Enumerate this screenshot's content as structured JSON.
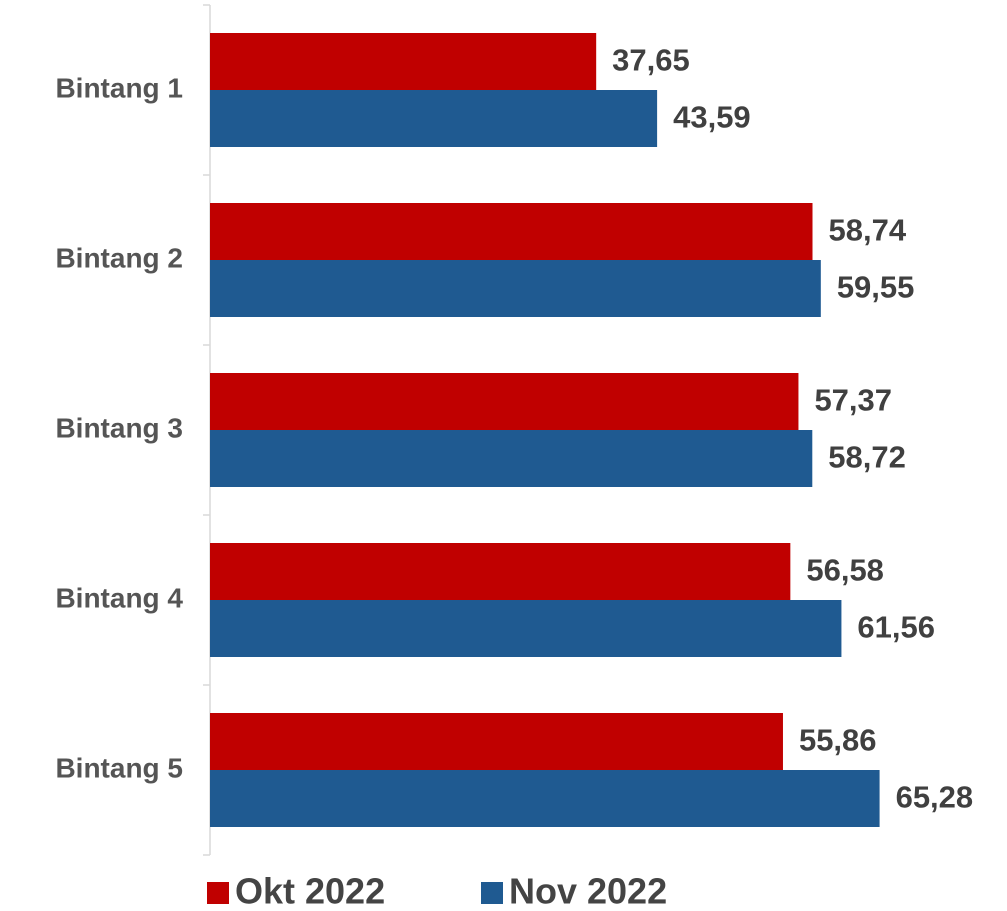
{
  "chart_data": {
    "type": "bar",
    "orientation": "horizontal",
    "categories": [
      "Bintang 1",
      "Bintang 2",
      "Bintang 3",
      "Bintang 4",
      "Bintang 5"
    ],
    "series": [
      {
        "name": "Okt 2022",
        "color": "#c00000",
        "values": [
          37.65,
          58.74,
          57.37,
          56.58,
          55.86
        ],
        "value_labels": [
          "37,65",
          "58,74",
          "57,37",
          "56,58",
          "55,86"
        ]
      },
      {
        "name": "Nov 2022",
        "color": "#1f5a91",
        "values": [
          43.59,
          59.55,
          58.72,
          61.56,
          65.28
        ],
        "value_labels": [
          "43,59",
          "59,55",
          "58,72",
          "61,56",
          "65,28"
        ]
      }
    ],
    "xlim": [
      0,
      70
    ],
    "legend": "bottom"
  }
}
